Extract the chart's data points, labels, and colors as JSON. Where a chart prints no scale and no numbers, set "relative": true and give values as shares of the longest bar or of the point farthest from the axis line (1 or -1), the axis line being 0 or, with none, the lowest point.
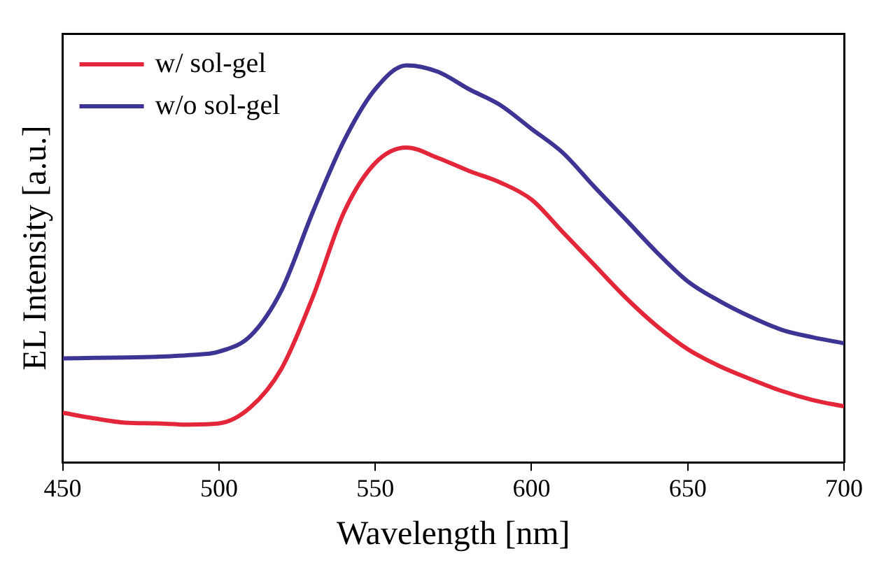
{
  "chart_data": {
    "type": "line",
    "xlabel": "Wavelength [nm]",
    "ylabel": "EL Intensity [a.u.]",
    "relative": true,
    "xlim": [
      450,
      700
    ],
    "xticks": [
      450,
      500,
      550,
      600,
      650,
      700
    ],
    "grid": false,
    "legend": "top left",
    "marker": "none",
    "line_style": "solid",
    "x": [
      450,
      460,
      470,
      480,
      490,
      500,
      510,
      520,
      530,
      540,
      550,
      560,
      570,
      580,
      590,
      600,
      610,
      620,
      630,
      640,
      650,
      660,
      670,
      680,
      690,
      700
    ],
    "series": [
      {
        "name": "w/ sol-gel",
        "color": "#e3263a",
        "values": [
          0.125,
          0.111,
          0.1,
          0.098,
          0.095,
          0.098,
          0.138,
          0.236,
          0.416,
          0.63,
          0.754,
          0.793,
          0.767,
          0.734,
          0.705,
          0.662,
          0.58,
          0.498,
          0.416,
          0.344,
          0.285,
          0.243,
          0.21,
          0.18,
          0.157,
          0.141
        ]
      },
      {
        "name": "w/o sol-gel",
        "color": "#3d3494",
        "values": [
          0.262,
          0.263,
          0.264,
          0.266,
          0.27,
          0.279,
          0.318,
          0.433,
          0.63,
          0.81,
          0.94,
          1.0,
          0.984,
          0.94,
          0.9,
          0.84,
          0.78,
          0.695,
          0.613,
          0.53,
          0.456,
          0.407,
          0.367,
          0.334,
          0.315,
          0.3
        ]
      }
    ]
  }
}
